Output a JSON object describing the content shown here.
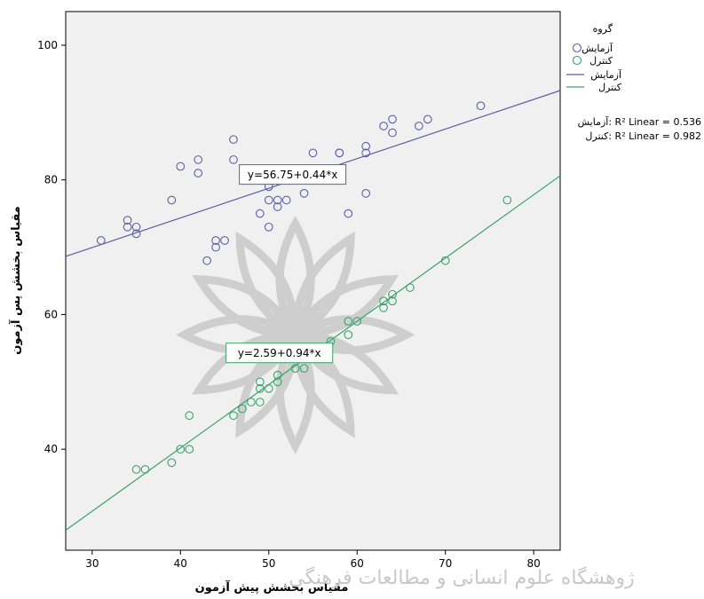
{
  "chart_data": {
    "type": "scatter",
    "xlabel": "مقیاس بخشش پیش آزمون",
    "ylabel": "مقیاس بخشش پس آزمون",
    "xlim": [
      27,
      83
    ],
    "ylim": [
      25,
      105
    ],
    "xticks": [
      30,
      40,
      50,
      60,
      70,
      80
    ],
    "yticks": [
      40,
      60,
      80,
      100
    ],
    "grid": false,
    "legend_position": "right",
    "legend_title": "گروه",
    "series": [
      {
        "name": "آزمایش",
        "color": "#5b5ea6",
        "points": [
          [
            31,
            71
          ],
          [
            34,
            74
          ],
          [
            34,
            73
          ],
          [
            35,
            73
          ],
          [
            35,
            72
          ],
          [
            39,
            77
          ],
          [
            40,
            82
          ],
          [
            42,
            83
          ],
          [
            42,
            81
          ],
          [
            43,
            68
          ],
          [
            44,
            71
          ],
          [
            44,
            70
          ],
          [
            45,
            71
          ],
          [
            46,
            86
          ],
          [
            46,
            83
          ],
          [
            49,
            75
          ],
          [
            50,
            73
          ],
          [
            50,
            77
          ],
          [
            50,
            79
          ],
          [
            51,
            77
          ],
          [
            51,
            76
          ],
          [
            52,
            77
          ],
          [
            54,
            78
          ],
          [
            55,
            84
          ],
          [
            58,
            84
          ],
          [
            58,
            84
          ],
          [
            59,
            75
          ],
          [
            61,
            85
          ],
          [
            61,
            84
          ],
          [
            61,
            78
          ],
          [
            63,
            88
          ],
          [
            64,
            89
          ],
          [
            64,
            87
          ],
          [
            67,
            88
          ],
          [
            68,
            89
          ],
          [
            74,
            91
          ]
        ],
        "fit_label": "y=56.75+0.44*x"
      },
      {
        "name": "کنترل",
        "color": "#3aa36a",
        "points": [
          [
            35,
            37
          ],
          [
            36,
            37
          ],
          [
            39,
            38
          ],
          [
            40,
            40
          ],
          [
            41,
            40
          ],
          [
            41,
            45
          ],
          [
            46,
            45
          ],
          [
            47,
            46
          ],
          [
            48,
            47
          ],
          [
            49,
            47
          ],
          [
            49,
            49
          ],
          [
            49,
            50
          ],
          [
            50,
            49
          ],
          [
            51,
            50
          ],
          [
            51,
            51
          ],
          [
            53,
            52
          ],
          [
            54,
            52
          ],
          [
            57,
            56
          ],
          [
            59,
            57
          ],
          [
            59,
            59
          ],
          [
            60,
            59
          ],
          [
            63,
            61
          ],
          [
            63,
            62
          ],
          [
            64,
            62
          ],
          [
            64,
            63
          ],
          [
            66,
            64
          ],
          [
            70,
            68
          ],
          [
            77,
            77
          ]
        ],
        "fit_label": "y=2.59+0.94*x"
      }
    ],
    "fit_lines": [
      {
        "name": "آزمایش",
        "color": "#5b5ea6",
        "intercept": 56.75,
        "slope": 0.44,
        "x_range": [
          27,
          83
        ]
      },
      {
        "name": "کنترل",
        "color": "#3aa36a",
        "intercept": 2.59,
        "slope": 0.94,
        "x_range": [
          27,
          83
        ]
      }
    ],
    "r2_legend": [
      {
        "group": "آزمایش",
        "text": "R² Linear = 0.536"
      },
      {
        "group": "کنترل",
        "text": "R² Linear = 0.982"
      }
    ]
  },
  "watermark_text": "ژوهشگاه علوم انسانی و مطالعات فرهنگی"
}
